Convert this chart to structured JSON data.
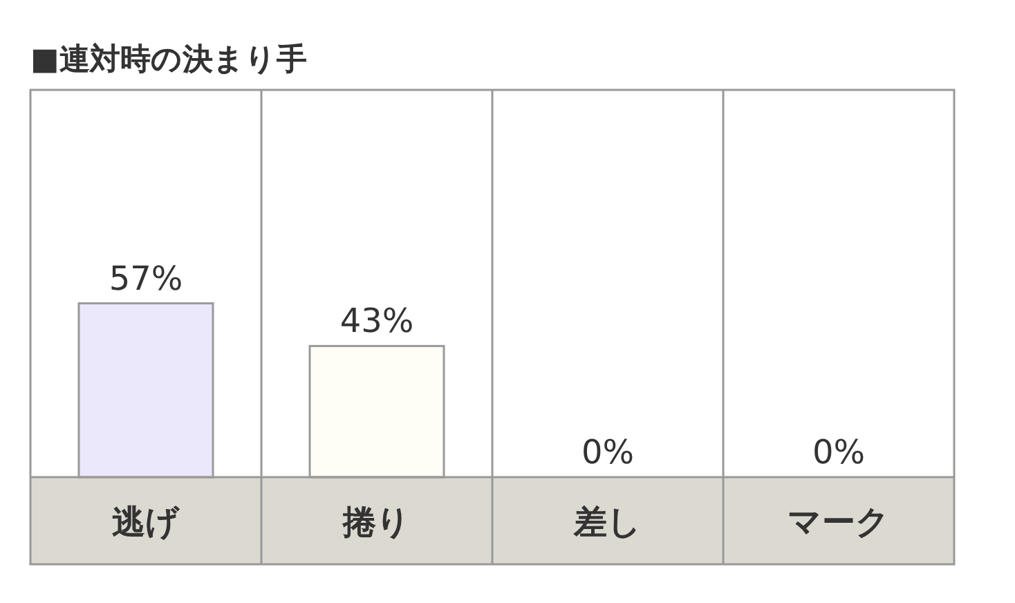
{
  "chart_data": {
    "type": "bar",
    "title": "■連対時の決まり手",
    "categories": [
      "逃げ",
      "捲り",
      "差し",
      "マーク"
    ],
    "values": [
      57,
      43,
      0,
      0
    ],
    "colors": [
      "#ece8fc",
      "#fffef6",
      "#ffffff",
      "#ffffff"
    ],
    "value_labels": [
      "57%",
      "43%",
      "0%",
      "0%"
    ],
    "ylim": [
      0,
      127
    ]
  }
}
